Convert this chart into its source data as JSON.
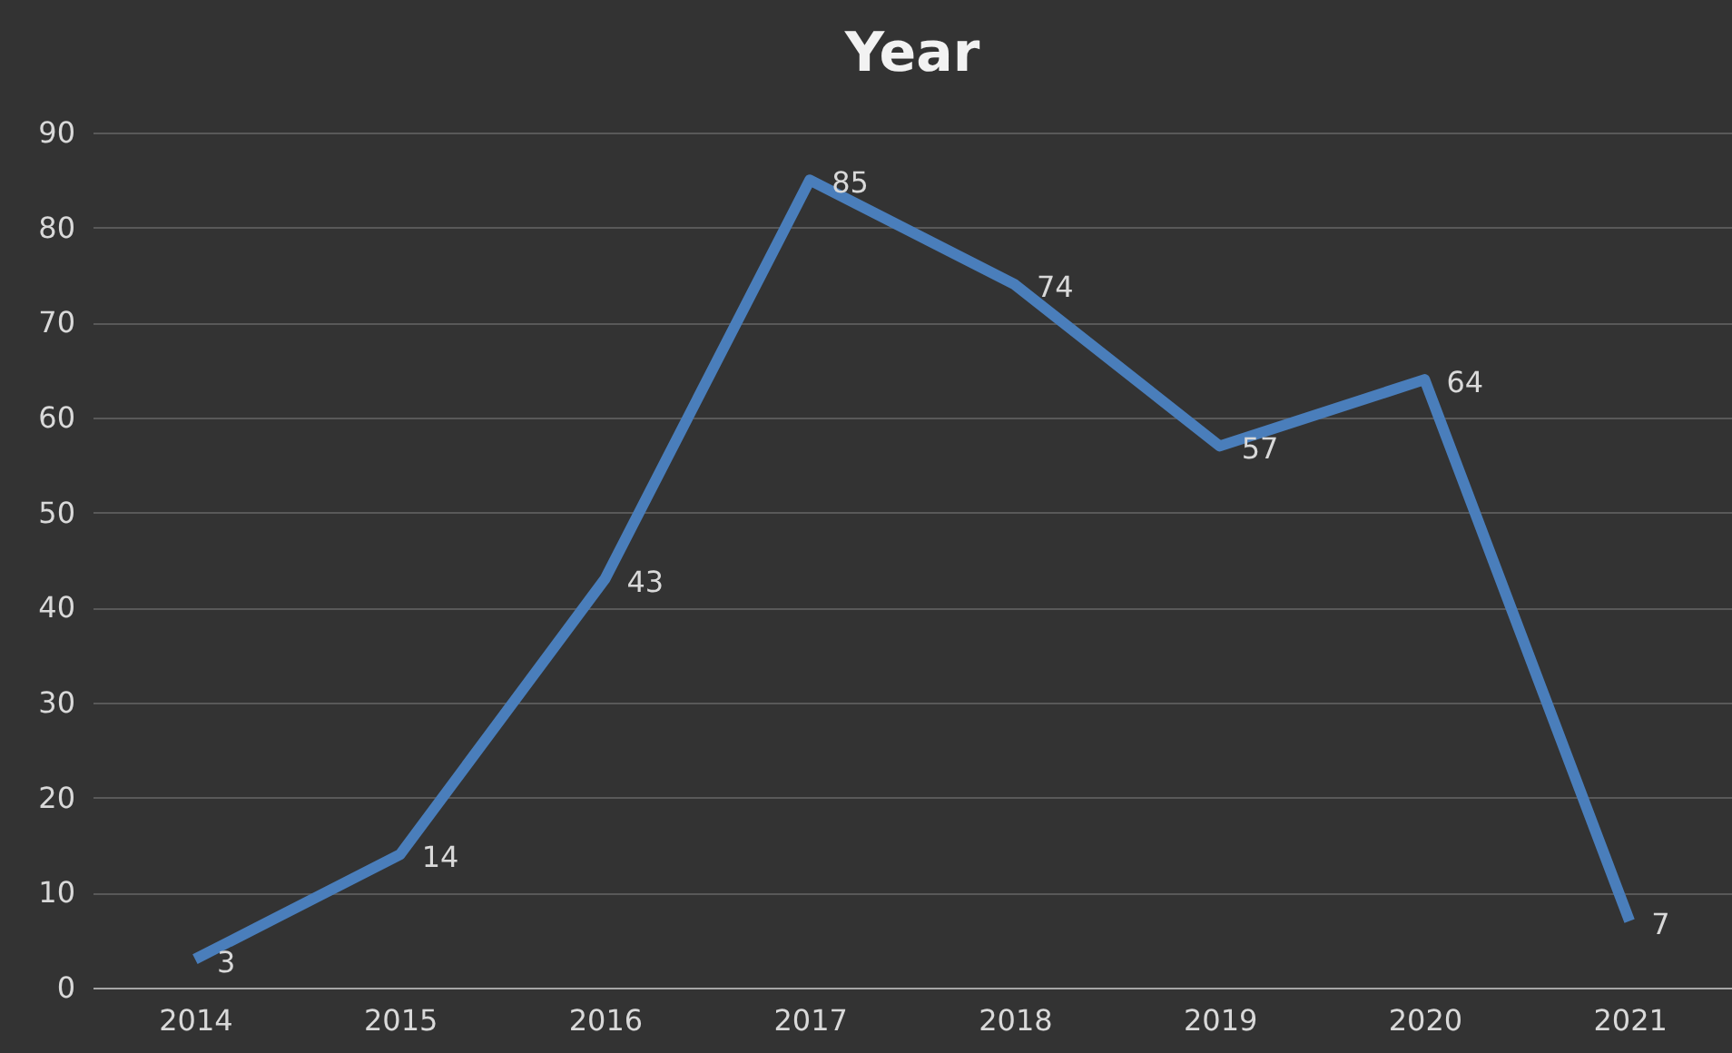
{
  "chart_data": {
    "type": "line",
    "title": "Year",
    "categories": [
      "2014",
      "2015",
      "2016",
      "2017",
      "2018",
      "2019",
      "2020",
      "2021"
    ],
    "series": [
      {
        "color": "#4a7ebb",
        "values": [
          3,
          14,
          43,
          85,
          74,
          57,
          64,
          7
        ]
      }
    ],
    "ylim": [
      0,
      90
    ],
    "yticks": [
      0,
      10,
      20,
      30,
      40,
      50,
      60,
      70,
      80,
      90
    ],
    "grid": "y",
    "data_labels": true,
    "legend": false,
    "marker": "none",
    "line_style": "solid"
  }
}
